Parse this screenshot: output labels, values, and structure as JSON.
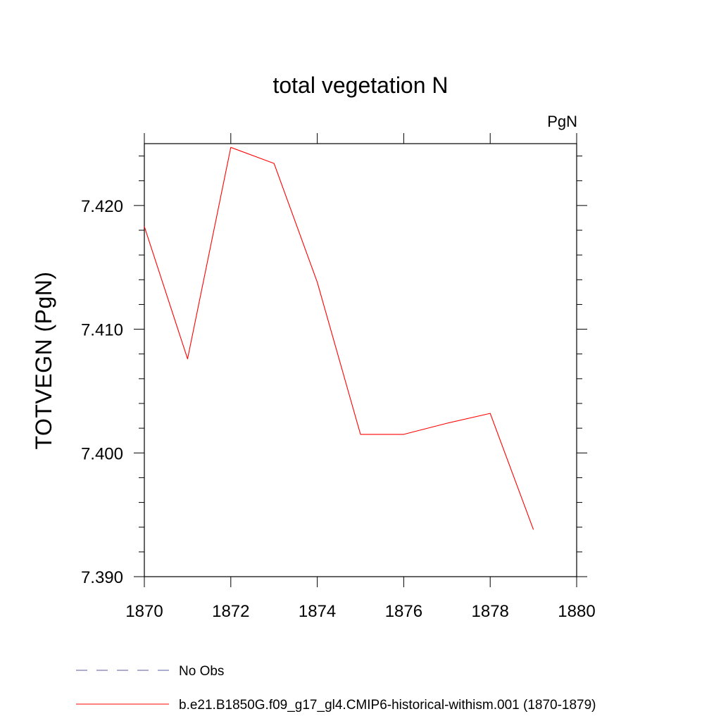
{
  "chart_data": {
    "type": "line",
    "title": "total vegetation N",
    "units_label": "PgN",
    "ylabel": "TOTVEGN  (PgN)",
    "xlabel": "",
    "xlim": [
      1870,
      1880
    ],
    "ylim": [
      7.39,
      7.425
    ],
    "x_major_ticks": [
      1870,
      1872,
      1874,
      1876,
      1878,
      1880
    ],
    "x_tick_labels": [
      "1870",
      "1872",
      "1874",
      "1876",
      "1878",
      "1880"
    ],
    "y_major_ticks": [
      7.39,
      7.4,
      7.41,
      7.42
    ],
    "y_tick_labels": [
      "7.390",
      "7.400",
      "7.410",
      "7.420"
    ],
    "grid": false,
    "legend_placement": "bottom-left",
    "series": [
      {
        "name": "b.e21.B1850G.f09_g17_gl4.CMIP6-historical-withism.001 (1870-1879)",
        "color": "#ff0000",
        "dash": "solid",
        "x": [
          1870,
          1871,
          1872,
          1873,
          1874,
          1875,
          1876,
          1877,
          1878,
          1879
        ],
        "y": [
          7.4183,
          7.4076,
          7.4247,
          7.4234,
          7.4138,
          7.4015,
          7.4015,
          7.4024,
          7.4032,
          7.3938
        ]
      }
    ],
    "legend": [
      {
        "name": "No Obs",
        "color": "#5a5aa0",
        "dash": "dashed"
      },
      {
        "name": "b.e21.B1850G.f09_g17_gl4.CMIP6-historical-withism.001 (1870-1879)",
        "color": "#ff0000",
        "dash": "solid"
      }
    ]
  }
}
